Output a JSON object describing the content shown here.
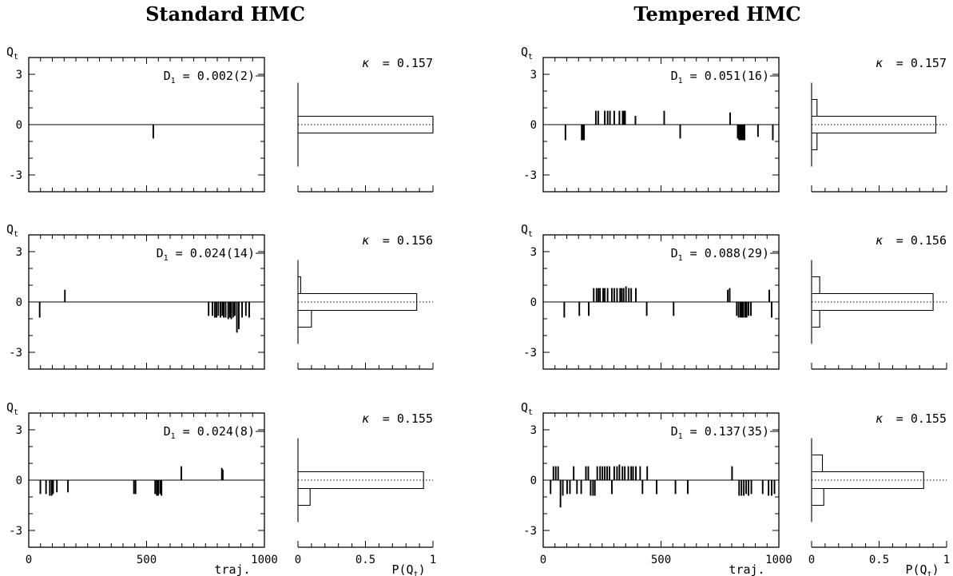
{
  "columns": [
    {
      "title": "Standard HMC"
    },
    {
      "title": "Tempered HMC"
    }
  ],
  "labels": {
    "y_label": "Q",
    "y_label_sub": "t",
    "x_label_traj": "traj.",
    "x_label_hist": "P(Q",
    "x_label_hist_sub": "t",
    "x_label_hist_close": ")",
    "d_prefix": "D",
    "d_sub": "1",
    "kappa_symbol": "κ"
  },
  "chart_data": [
    {
      "type": "line",
      "column": "Standard HMC",
      "kappa": "0.157",
      "D1": "0.002(2)",
      "xlim": [
        0,
        1000
      ],
      "ylim": [
        -4,
        4
      ],
      "yticks": [
        "3",
        "0",
        "-3"
      ],
      "xticks": [
        "0",
        "500",
        "1000"
      ],
      "spikes": [
        [
          527,
          -0.8
        ]
      ],
      "hist": {
        "xlim": [
          0,
          1
        ],
        "xticks": [
          "0",
          "0.5",
          "1"
        ],
        "P": [
          0.0,
          0.0,
          1.0,
          0.0,
          0.0
        ]
      }
    },
    {
      "type": "line",
      "column": "Standard HMC",
      "kappa": "0.156",
      "D1": "0.024(14)",
      "xlim": [
        0,
        1000
      ],
      "ylim": [
        -4,
        4
      ],
      "yticks": [
        "3",
        "0",
        "-3"
      ],
      "xticks": [
        "0",
        "500",
        "1000"
      ],
      "spikes": [
        [
          45,
          -0.9
        ],
        [
          152,
          0.7
        ],
        [
          762,
          -0.8
        ],
        [
          778,
          -0.8
        ],
        [
          788,
          -0.9
        ],
        [
          795,
          -0.9
        ],
        [
          803,
          -0.8
        ],
        [
          812,
          -0.9
        ],
        [
          820,
          -0.8
        ],
        [
          826,
          -0.9
        ],
        [
          834,
          -0.9
        ],
        [
          845,
          -1.0
        ],
        [
          852,
          -0.9
        ],
        [
          858,
          -1.0
        ],
        [
          866,
          -0.9
        ],
        [
          873,
          -0.8
        ],
        [
          882,
          -1.8
        ],
        [
          890,
          -1.6
        ],
        [
          904,
          -0.9
        ],
        [
          920,
          -0.8
        ],
        [
          934,
          -0.9
        ]
      ],
      "hist": {
        "xlim": [
          0,
          1
        ],
        "xticks": [
          "0",
          "0.5",
          "1"
        ],
        "P": [
          0.0,
          0.1,
          0.88,
          0.02,
          0.0
        ]
      }
    },
    {
      "type": "line",
      "column": "Standard HMC",
      "kappa": "0.155",
      "D1": "0.024(8)",
      "xlim": [
        0,
        1000
      ],
      "ylim": [
        -4,
        4
      ],
      "yticks": [
        "3",
        "0",
        "-3"
      ],
      "xticks": [
        "0",
        "500",
        "1000"
      ],
      "spikes": [
        [
          48,
          -0.8
        ],
        [
          72,
          -0.8
        ],
        [
          88,
          -0.9
        ],
        [
          96,
          -0.9
        ],
        [
          102,
          -0.8
        ],
        [
          118,
          -0.7
        ],
        [
          165,
          -0.7
        ],
        [
          445,
          -0.8
        ],
        [
          452,
          -0.8
        ],
        [
          535,
          -0.8
        ],
        [
          542,
          -0.9
        ],
        [
          548,
          -0.9
        ],
        [
          556,
          -0.8
        ],
        [
          562,
          -0.9
        ],
        [
          646,
          0.8
        ],
        [
          818,
          0.7
        ],
        [
          822,
          0.6
        ]
      ],
      "hist": {
        "xlim": [
          0,
          1
        ],
        "xticks": [
          "0",
          "0.5",
          "1"
        ],
        "P": [
          0.0,
          0.09,
          0.93,
          0.0,
          0.0
        ]
      }
    },
    {
      "type": "line",
      "column": "Tempered HMC",
      "kappa": "0.157",
      "D1": "0.051(16)",
      "xlim": [
        0,
        1000
      ],
      "ylim": [
        -4,
        4
      ],
      "yticks": [
        "3",
        "0",
        "-3"
      ],
      "xticks": [
        "0",
        "500",
        "1000"
      ],
      "spikes": [
        [
          93,
          -0.9
        ],
        [
          162,
          -0.9
        ],
        [
          168,
          -0.9
        ],
        [
          172,
          -0.9
        ],
        [
          222,
          0.8
        ],
        [
          232,
          0.8
        ],
        [
          260,
          0.8
        ],
        [
          272,
          0.8
        ],
        [
          282,
          0.8
        ],
        [
          300,
          0.8
        ],
        [
          322,
          0.8
        ],
        [
          336,
          0.8
        ],
        [
          341,
          0.8
        ],
        [
          346,
          0.8
        ],
        [
          390,
          0.5
        ],
        [
          512,
          0.8
        ],
        [
          580,
          -0.8
        ],
        [
          792,
          0.7
        ],
        [
          824,
          -0.8
        ],
        [
          830,
          -0.9
        ],
        [
          836,
          -0.9
        ],
        [
          842,
          -0.9
        ],
        [
          848,
          -0.9
        ],
        [
          853,
          -0.9
        ],
        [
          910,
          -0.7
        ],
        [
          973,
          -0.9
        ]
      ],
      "hist": {
        "xlim": [
          0,
          1
        ],
        "xticks": [
          "0",
          "0.5",
          "1"
        ],
        "P": [
          0.0,
          0.04,
          0.92,
          0.04,
          0.0
        ]
      }
    },
    {
      "type": "line",
      "column": "Tempered HMC",
      "kappa": "0.156",
      "D1": "0.088(29)",
      "xlim": [
        0,
        1000
      ],
      "ylim": [
        -4,
        4
      ],
      "yticks": [
        "3",
        "0",
        "-3"
      ],
      "xticks": [
        "0",
        "500",
        "1000"
      ],
      "spikes": [
        [
          88,
          -0.9
        ],
        [
          152,
          -0.8
        ],
        [
          192,
          -0.8
        ],
        [
          213,
          0.8
        ],
        [
          225,
          0.8
        ],
        [
          233,
          0.8
        ],
        [
          240,
          0.8
        ],
        [
          253,
          0.8
        ],
        [
          260,
          0.8
        ],
        [
          272,
          0.8
        ],
        [
          290,
          0.8
        ],
        [
          300,
          0.8
        ],
        [
          312,
          0.8
        ],
        [
          325,
          0.8
        ],
        [
          332,
          0.8
        ],
        [
          340,
          0.8
        ],
        [
          350,
          0.9
        ],
        [
          362,
          0.8
        ],
        [
          372,
          0.8
        ],
        [
          392,
          0.8
        ],
        [
          438,
          -0.8
        ],
        [
          552,
          -0.8
        ],
        [
          782,
          0.7
        ],
        [
          790,
          0.8
        ],
        [
          820,
          -0.8
        ],
        [
          828,
          -0.9
        ],
        [
          836,
          -0.9
        ],
        [
          842,
          -0.9
        ],
        [
          848,
          -0.9
        ],
        [
          856,
          -0.9
        ],
        [
          862,
          -0.9
        ],
        [
          870,
          -0.8
        ],
        [
          880,
          -0.8
        ],
        [
          958,
          0.7
        ],
        [
          968,
          -0.9
        ]
      ],
      "hist": {
        "xlim": [
          0,
          1
        ],
        "xticks": [
          "0",
          "0.5",
          "1"
        ],
        "P": [
          0.0,
          0.06,
          0.9,
          0.06,
          0.0
        ]
      }
    },
    {
      "type": "line",
      "column": "Tempered HMC",
      "kappa": "0.155",
      "D1": "0.137(35)",
      "xlim": [
        0,
        1000
      ],
      "ylim": [
        -4,
        4
      ],
      "yticks": [
        "3",
        "0",
        "-3"
      ],
      "xticks": [
        "0",
        "500",
        "1000"
      ],
      "spikes": [
        [
          30,
          -0.8
        ],
        [
          42,
          0.8
        ],
        [
          52,
          0.8
        ],
        [
          62,
          0.8
        ],
        [
          72,
          -1.6
        ],
        [
          82,
          -0.9
        ],
        [
          100,
          -0.8
        ],
        [
          112,
          -0.8
        ],
        [
          128,
          0.8
        ],
        [
          142,
          -0.8
        ],
        [
          160,
          -0.8
        ],
        [
          180,
          0.8
        ],
        [
          190,
          0.8
        ],
        [
          200,
          -0.9
        ],
        [
          210,
          -0.9
        ],
        [
          218,
          -0.9
        ],
        [
          228,
          0.8
        ],
        [
          240,
          0.8
        ],
        [
          250,
          0.8
        ],
        [
          260,
          0.8
        ],
        [
          270,
          0.8
        ],
        [
          280,
          0.8
        ],
        [
          290,
          -0.8
        ],
        [
          300,
          0.8
        ],
        [
          312,
          0.8
        ],
        [
          322,
          0.9
        ],
        [
          335,
          0.8
        ],
        [
          345,
          0.8
        ],
        [
          360,
          0.8
        ],
        [
          372,
          0.8
        ],
        [
          380,
          0.8
        ],
        [
          392,
          0.8
        ],
        [
          410,
          0.8
        ],
        [
          420,
          -0.8
        ],
        [
          440,
          0.8
        ],
        [
          480,
          -0.8
        ],
        [
          560,
          -0.8
        ],
        [
          612,
          -0.8
        ],
        [
          800,
          0.8
        ],
        [
          830,
          -0.9
        ],
        [
          840,
          -0.9
        ],
        [
          850,
          -0.9
        ],
        [
          860,
          -0.8
        ],
        [
          870,
          -0.9
        ],
        [
          882,
          -0.8
        ],
        [
          930,
          -0.8
        ],
        [
          955,
          -0.9
        ],
        [
          968,
          -0.9
        ],
        [
          980,
          -0.8
        ]
      ],
      "hist": {
        "xlim": [
          0,
          1
        ],
        "xticks": [
          "0",
          "0.5",
          "1"
        ],
        "P": [
          0.0,
          0.09,
          0.83,
          0.08,
          0.0
        ]
      }
    }
  ]
}
